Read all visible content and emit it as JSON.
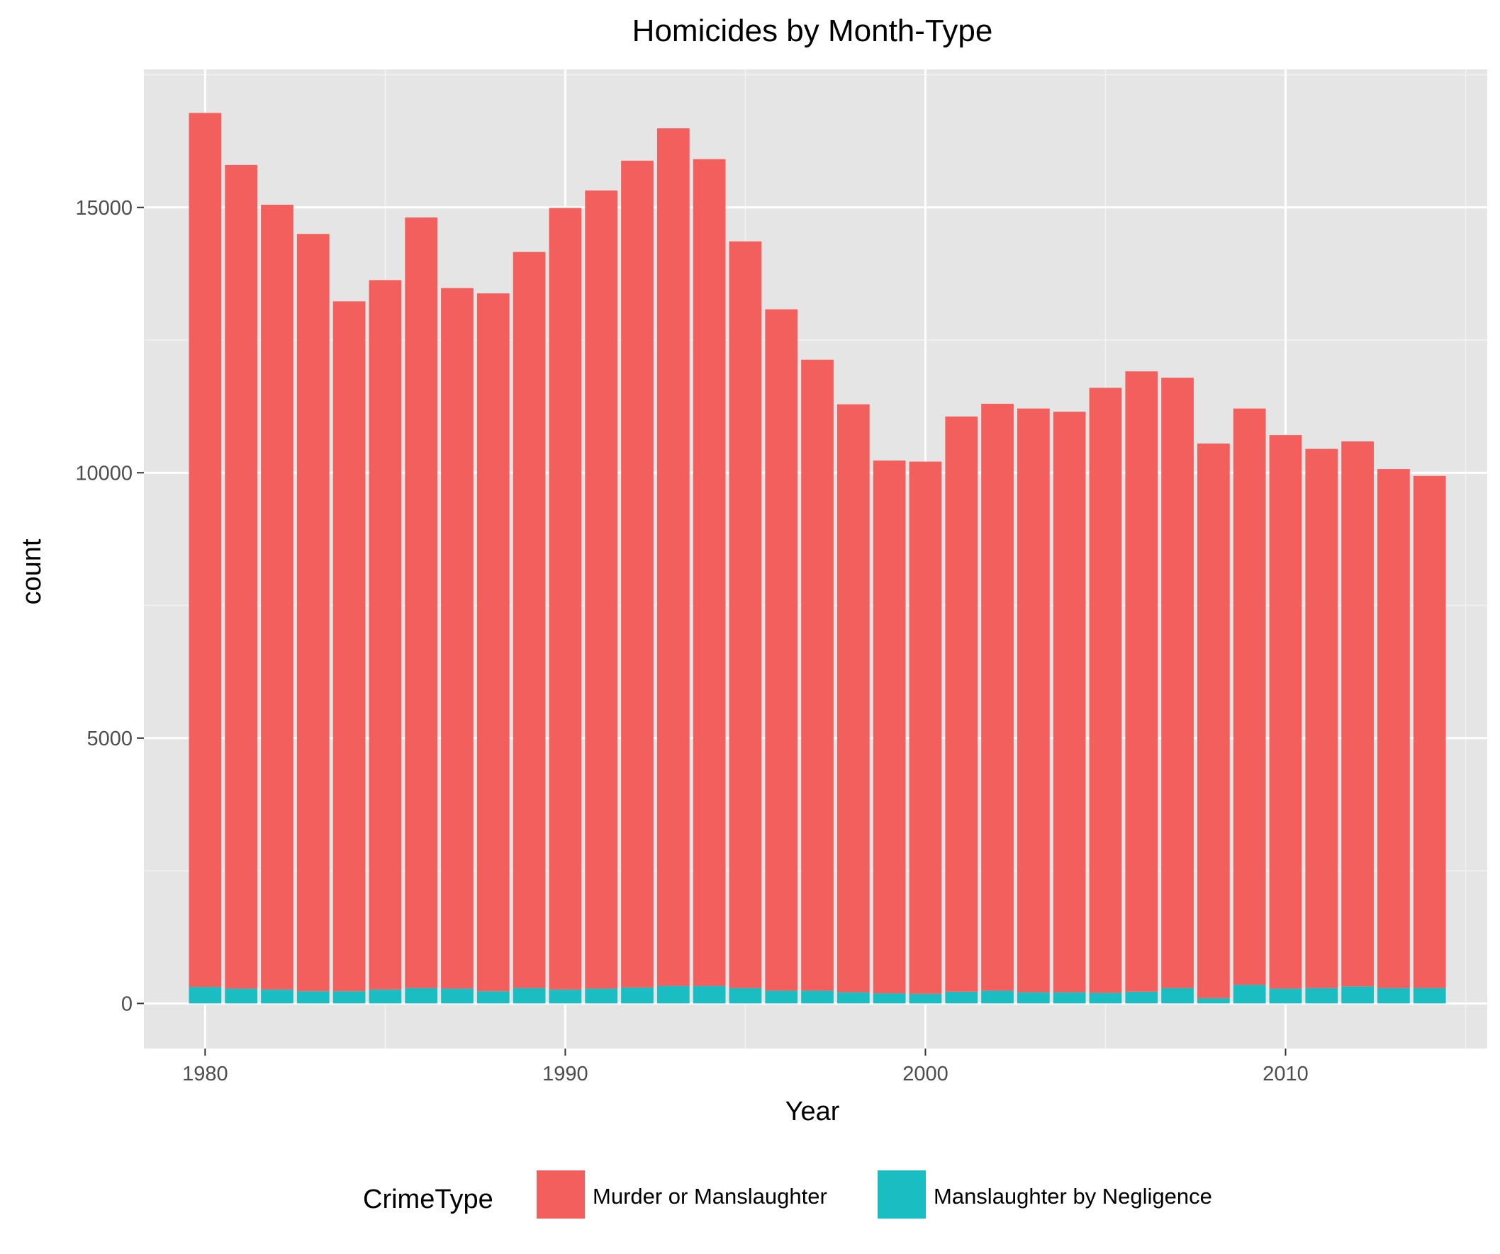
{
  "chart_data": {
    "type": "bar",
    "stacked": true,
    "title": "Homicides by Month-Type",
    "xlabel": "Year",
    "ylabel": "count",
    "x": [
      1980,
      1981,
      1982,
      1983,
      1984,
      1985,
      1986,
      1987,
      1988,
      1989,
      1990,
      1991,
      1992,
      1993,
      1994,
      1995,
      1996,
      1997,
      1998,
      1999,
      2000,
      2001,
      2002,
      2003,
      2004,
      2005,
      2006,
      2007,
      2008,
      2009,
      2010,
      2011,
      2012,
      2013,
      2014
    ],
    "series": [
      {
        "name": "Manslaughter by Negligence",
        "color": "#19BDC2",
        "values": [
          310,
          280,
          260,
          230,
          230,
          260,
          290,
          280,
          230,
          290,
          260,
          280,
          300,
          330,
          330,
          290,
          240,
          240,
          210,
          190,
          180,
          220,
          240,
          210,
          210,
          200,
          220,
          290,
          100,
          350,
          280,
          290,
          320,
          290,
          290
        ]
      },
      {
        "name": "Murder or Manslaughter",
        "color": "#F25F5C",
        "values": [
          16470,
          15520,
          14790,
          14270,
          13000,
          13370,
          14520,
          13200,
          13150,
          13870,
          14730,
          15040,
          15580,
          16160,
          15580,
          14070,
          12840,
          11890,
          11080,
          10040,
          10030,
          10840,
          11060,
          11000,
          10940,
          11400,
          11690,
          11500,
          10450,
          10860,
          10430,
          10160,
          10270,
          9780,
          9650
        ]
      }
    ],
    "xlim": [
      1978.3,
      2015.6
    ],
    "ylim": [
      -850,
      17600
    ],
    "xticks": [
      "1980",
      "1990",
      "2000",
      "2010"
    ],
    "yticks": [
      "0",
      "5000",
      "10000",
      "15000"
    ],
    "grid": true,
    "legend": {
      "title": "CrimeType",
      "position": "bottom",
      "entries": [
        {
          "label": "Murder or Manslaughter",
          "color": "#F25F5C"
        },
        {
          "label": "Manslaughter by Negligence",
          "color": "#19BDC2"
        }
      ]
    }
  }
}
